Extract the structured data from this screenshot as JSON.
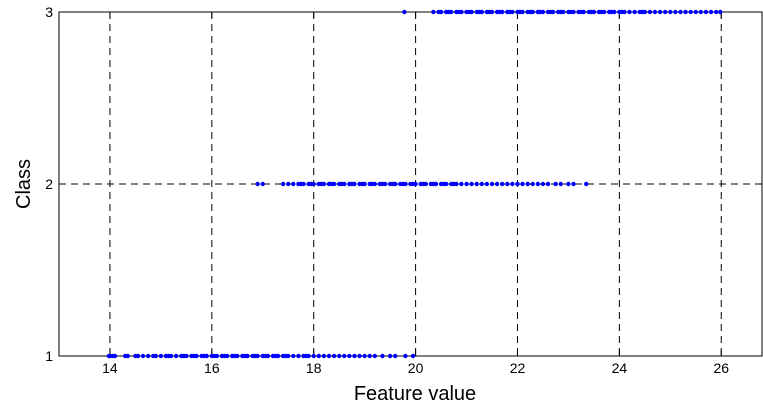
{
  "chart_data": {
    "type": "scatter",
    "title": "",
    "xlabel": "Feature value",
    "ylabel": "Class",
    "xlim": [
      13,
      26.8
    ],
    "ylim": [
      1,
      3
    ],
    "xticks": [
      14,
      16,
      18,
      20,
      22,
      24,
      26
    ],
    "yticks": [
      1,
      2,
      3
    ],
    "grid": true,
    "marker_color": "#0000ff",
    "series": [
      {
        "class": 1,
        "x": [
          13.98,
          14.0,
          14.05,
          14.1,
          14.3,
          14.35,
          14.5,
          14.55,
          14.65,
          14.75,
          14.85,
          14.9,
          15.0,
          15.1,
          15.15,
          15.2,
          15.3,
          15.4,
          15.45,
          15.5,
          15.6,
          15.65,
          15.7,
          15.8,
          15.85,
          15.9,
          16.0,
          16.05,
          16.1,
          16.2,
          16.25,
          16.3,
          16.4,
          16.45,
          16.5,
          16.6,
          16.65,
          16.7,
          16.8,
          16.85,
          16.9,
          17.0,
          17.05,
          17.1,
          17.2,
          17.25,
          17.3,
          17.4,
          17.45,
          17.5,
          17.6,
          17.7,
          17.8,
          17.85,
          17.9,
          18.0,
          18.1,
          18.2,
          18.3,
          18.4,
          18.5,
          18.6,
          18.7,
          18.8,
          18.9,
          19.0,
          19.1,
          19.2,
          19.35,
          19.5,
          19.6,
          19.8,
          19.95
        ]
      },
      {
        "class": 2,
        "x": [
          16.9,
          17.0,
          17.4,
          17.5,
          17.6,
          17.7,
          17.75,
          17.8,
          17.9,
          17.95,
          18.0,
          18.1,
          18.15,
          18.2,
          18.3,
          18.35,
          18.4,
          18.5,
          18.55,
          18.6,
          18.7,
          18.75,
          18.8,
          18.9,
          18.95,
          19.0,
          19.1,
          19.15,
          19.2,
          19.3,
          19.35,
          19.4,
          19.5,
          19.55,
          19.6,
          19.7,
          19.75,
          19.8,
          19.9,
          19.95,
          20.0,
          20.1,
          20.15,
          20.2,
          20.3,
          20.35,
          20.4,
          20.5,
          20.55,
          20.6,
          20.7,
          20.75,
          20.8,
          20.9,
          21.0,
          21.1,
          21.2,
          21.3,
          21.4,
          21.5,
          21.6,
          21.7,
          21.8,
          21.9,
          22.0,
          22.1,
          22.2,
          22.3,
          22.4,
          22.5,
          22.6,
          22.75,
          22.85,
          23.0,
          23.1,
          23.35
        ]
      },
      {
        "class": 3,
        "x": [
          19.78,
          20.35,
          20.45,
          20.5,
          20.6,
          20.65,
          20.7,
          20.8,
          20.85,
          20.9,
          21.0,
          21.05,
          21.1,
          21.2,
          21.25,
          21.3,
          21.4,
          21.45,
          21.5,
          21.6,
          21.65,
          21.7,
          21.8,
          21.85,
          21.9,
          22.0,
          22.05,
          22.1,
          22.2,
          22.25,
          22.3,
          22.4,
          22.45,
          22.5,
          22.6,
          22.65,
          22.7,
          22.8,
          22.85,
          22.9,
          23.0,
          23.05,
          23.1,
          23.2,
          23.25,
          23.3,
          23.4,
          23.45,
          23.5,
          23.6,
          23.65,
          23.7,
          23.8,
          23.85,
          23.9,
          24.0,
          24.05,
          24.1,
          24.2,
          24.3,
          24.4,
          24.45,
          24.5,
          24.6,
          24.7,
          24.8,
          24.9,
          25.0,
          25.1,
          25.2,
          25.3,
          25.4,
          25.5,
          25.6,
          25.7,
          25.8,
          25.9,
          25.98
        ]
      }
    ]
  }
}
